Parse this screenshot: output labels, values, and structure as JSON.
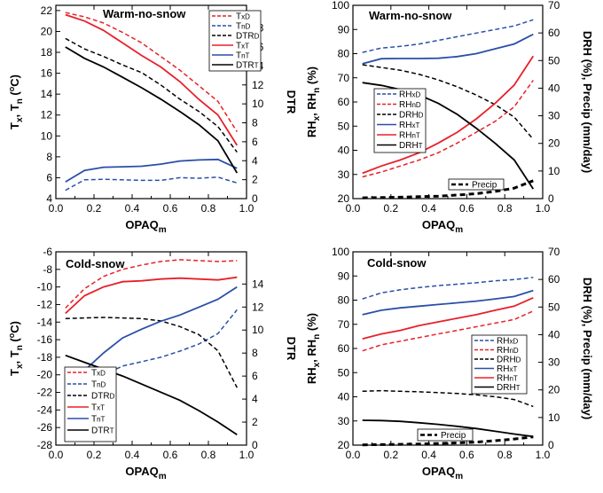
{
  "colors": {
    "red": "#e8202a",
    "blue": "#2a4fa8",
    "black": "#000000"
  },
  "chart_data": [
    {
      "type": "line",
      "panel": "top-left",
      "title": "Warm-no-snow",
      "xlabel": {
        "main": "OPAQ",
        "sub": "m"
      },
      "ylabel": {
        "main": "T",
        "sub1": "x",
        "mid": ", T",
        "sub2": "n",
        "tail": " (",
        "sup": "o",
        "end": "C)"
      },
      "y2label": "DTR",
      "xlim": [
        0,
        1
      ],
      "xticks": [
        0,
        0.2,
        0.4,
        0.6,
        0.8,
        1
      ],
      "xticklabels": [
        "0.0",
        "0.2",
        "0.4",
        "0.6",
        "0.8",
        "1.0"
      ],
      "ylim": [
        4,
        22.5
      ],
      "yticks": [
        4,
        6,
        8,
        10,
        12,
        14,
        16,
        18,
        20,
        22
      ],
      "yticklabels": [
        "4",
        "6",
        "8",
        "10",
        "12",
        "14",
        "16",
        "18",
        "20",
        "22"
      ],
      "y2lim": [
        0,
        20.4
      ],
      "y2ticks": [
        0,
        2,
        4,
        6,
        8,
        10,
        12,
        14,
        16,
        18
      ],
      "y2ticklabels": [
        "0",
        "2",
        "4",
        "6",
        "8",
        "10",
        "12",
        "14",
        "16",
        "18"
      ],
      "legend_position": "top-right",
      "x": [
        0.05,
        0.15,
        0.25,
        0.35,
        0.45,
        0.55,
        0.65,
        0.75,
        0.85,
        0.95
      ],
      "series": [
        {
          "name": "TxD",
          "base": "T",
          "sub": "xD",
          "color": "red",
          "dash": "dashed",
          "axis": "left",
          "values": [
            21.8,
            21.4,
            20.8,
            19.9,
            18.9,
            17.6,
            16.3,
            14.8,
            13.3,
            10.4
          ]
        },
        {
          "name": "TnD",
          "base": "T",
          "sub": "nD",
          "color": "blue",
          "dash": "dashed",
          "axis": "left",
          "values": [
            4.8,
            5.8,
            5.85,
            5.8,
            5.75,
            5.75,
            6.0,
            5.95,
            6.05,
            5.5
          ]
        },
        {
          "name": "DTRD",
          "base": "DTR",
          "sub": "D",
          "color": "black",
          "dash": "dashed",
          "axis": "right",
          "values": [
            16.9,
            15.8,
            15.0,
            14.1,
            13.3,
            12.0,
            10.5,
            9.2,
            7.6,
            4.9
          ]
        },
        {
          "name": "TxT",
          "base": "T",
          "sub": "xT",
          "color": "red",
          "dash": "solid",
          "axis": "left",
          "values": [
            21.6,
            21.0,
            20.1,
            18.9,
            17.7,
            16.6,
            15.2,
            13.5,
            12.0,
            9.1
          ]
        },
        {
          "name": "TnT",
          "base": "T",
          "sub": "nT",
          "color": "blue",
          "dash": "solid",
          "axis": "left",
          "values": [
            5.6,
            6.7,
            7.0,
            7.05,
            7.1,
            7.3,
            7.6,
            7.7,
            7.75,
            6.9
          ]
        },
        {
          "name": "DTRT",
          "base": "DTR",
          "sub": "T",
          "color": "black",
          "dash": "solid",
          "axis": "right",
          "values": [
            16.0,
            14.8,
            13.9,
            12.8,
            11.7,
            10.5,
            9.2,
            7.8,
            6.1,
            2.7
          ]
        }
      ]
    },
    {
      "type": "line",
      "panel": "top-right",
      "title": "Warm-no-snow",
      "xlabel": {
        "main": "OPAQ",
        "sub": "m"
      },
      "ylabel": {
        "main": "RH",
        "sub1": "x",
        "mid": ", RH",
        "sub2": "n",
        "tail": " (%)"
      },
      "y2label": "DRH (%), Precip (mm/day)",
      "xlim": [
        0,
        1
      ],
      "xticks": [
        0,
        0.2,
        0.4,
        0.6,
        0.8,
        1
      ],
      "xticklabels": [
        "0.0",
        "0.2",
        "0.4",
        "0.6",
        "0.8",
        "1.0"
      ],
      "ylim": [
        20,
        100
      ],
      "yticks": [
        20,
        30,
        40,
        50,
        60,
        70,
        80,
        90,
        100
      ],
      "yticklabels": [
        "20",
        "30",
        "40",
        "50",
        "60",
        "70",
        "80",
        "90",
        "100"
      ],
      "y2lim": [
        0,
        70
      ],
      "y2ticks": [
        0,
        10,
        20,
        30,
        40,
        50,
        60,
        70
      ],
      "y2ticklabels": [
        "0",
        "10",
        "20",
        "30",
        "40",
        "50",
        "60",
        "70"
      ],
      "legend_position": "center-right",
      "x": [
        0.05,
        0.15,
        0.25,
        0.35,
        0.45,
        0.55,
        0.65,
        0.75,
        0.85,
        0.95
      ],
      "series": [
        {
          "name": "RHxD",
          "base": "RH",
          "sub": "xD",
          "color": "blue",
          "dash": "dashed",
          "axis": "left",
          "values": [
            80.5,
            82.3,
            83.0,
            84.0,
            85.5,
            87.0,
            88.5,
            90.0,
            91.5,
            94.0
          ]
        },
        {
          "name": "RHnD",
          "base": "RH",
          "sub": "nD",
          "color": "red",
          "dash": "dashed",
          "axis": "left",
          "values": [
            29.0,
            31.0,
            33.5,
            36.0,
            39.0,
            43.0,
            47.5,
            52.0,
            58.0,
            69.0
          ]
        },
        {
          "name": "DRHD",
          "base": "DRH",
          "sub": "D",
          "color": "black",
          "dash": "dashed",
          "axis": "right",
          "values": [
            48.5,
            47.5,
            46.5,
            45.0,
            43.0,
            40.5,
            37.5,
            34.0,
            29.5,
            21.5
          ]
        },
        {
          "name": "RHxT",
          "base": "RH",
          "sub": "xT",
          "color": "blue",
          "dash": "solid",
          "axis": "left",
          "values": [
            75.8,
            77.9,
            78.0,
            78.0,
            78.1,
            78.8,
            80.0,
            82.0,
            84.0,
            88.0
          ]
        },
        {
          "name": "RHnT",
          "base": "RH",
          "sub": "nT",
          "color": "red",
          "dash": "solid",
          "axis": "left",
          "values": [
            30.5,
            33.5,
            36.0,
            39.0,
            43.0,
            47.5,
            53.0,
            59.5,
            67.0,
            79.0
          ]
        },
        {
          "name": "DRHT",
          "base": "DRH",
          "sub": "T",
          "color": "black",
          "dash": "solid",
          "axis": "right",
          "values": [
            42.0,
            41.0,
            39.5,
            37.5,
            34.5,
            30.5,
            25.5,
            20.0,
            14.0,
            3.5
          ]
        },
        {
          "name": "Precip",
          "base": "Precip",
          "sub": "",
          "color": "black",
          "dash": "thickdash",
          "axis": "right",
          "in_legend": false,
          "values": [
            0.3,
            0.4,
            0.5,
            0.7,
            0.9,
            1.3,
            1.8,
            2.6,
            3.8,
            6.5
          ]
        }
      ],
      "annotation": "Precip"
    },
    {
      "type": "line",
      "panel": "bottom-left",
      "title": "Cold-snow",
      "xlabel": {
        "main": "OPAQ",
        "sub": "m"
      },
      "ylabel": {
        "main": "T",
        "sub1": "x",
        "mid": ", T",
        "sub2": "n",
        "tail": " (",
        "sup": "o",
        "end": "C)"
      },
      "y2label": "DTR",
      "xlim": [
        0,
        1
      ],
      "xticks": [
        0,
        0.2,
        0.4,
        0.6,
        0.8,
        1
      ],
      "xticklabels": [
        "0.0",
        "0.2",
        "0.4",
        "0.6",
        "0.8",
        "1.0"
      ],
      "ylim": [
        -28,
        -6
      ],
      "yticks": [
        -28,
        -26,
        -24,
        -22,
        -20,
        -18,
        -16,
        -14,
        -12,
        -10,
        -8,
        -6
      ],
      "yticklabels": [
        "-28",
        "-26",
        "-24",
        "-22",
        "-20",
        "-18",
        "-16",
        "-14",
        "-12",
        "-10",
        "-8",
        "-6"
      ],
      "y2lim": [
        0,
        16.8
      ],
      "y2ticks": [
        0,
        2,
        4,
        6,
        8,
        10,
        12,
        14
      ],
      "y2ticklabels": [
        "0",
        "2",
        "4",
        "6",
        "8",
        "10",
        "12",
        "14"
      ],
      "legend_position": "bottom-left",
      "x": [
        0.05,
        0.15,
        0.25,
        0.35,
        0.45,
        0.55,
        0.65,
        0.75,
        0.85,
        0.95
      ],
      "series": [
        {
          "name": "TxD",
          "base": "T",
          "sub": "xD",
          "color": "red",
          "dash": "dashed",
          "axis": "left",
          "values": [
            -12.4,
            -10.2,
            -8.8,
            -8.0,
            -7.5,
            -7.1,
            -6.9,
            -7.0,
            -7.1,
            -7.0
          ]
        },
        {
          "name": "TnD",
          "base": "T",
          "sub": "nD",
          "color": "blue",
          "dash": "dashed",
          "axis": "left",
          "values": [
            -23.6,
            -21.4,
            -20.0,
            -19.0,
            -18.5,
            -18.0,
            -17.3,
            -16.5,
            -15.3,
            -12.6
          ]
        },
        {
          "name": "DTRD",
          "base": "DTR",
          "sub": "D",
          "color": "black",
          "dash": "dashed",
          "axis": "right",
          "values": [
            11.0,
            11.05,
            11.1,
            11.05,
            11.0,
            10.8,
            10.3,
            9.6,
            8.2,
            5.0
          ]
        },
        {
          "name": "TxT",
          "base": "T",
          "sub": "xT",
          "color": "red",
          "dash": "solid",
          "axis": "left",
          "values": [
            -13.0,
            -11.0,
            -10.0,
            -9.4,
            -9.3,
            -9.1,
            -9.0,
            -9.1,
            -9.2,
            -8.9
          ]
        },
        {
          "name": "TnT",
          "base": "T",
          "sub": "nT",
          "color": "blue",
          "dash": "solid",
          "axis": "left",
          "values": [
            -22.0,
            -19.5,
            -17.5,
            -15.8,
            -14.8,
            -13.9,
            -13.2,
            -12.3,
            -11.4,
            -10.0
          ]
        },
        {
          "name": "DTRT",
          "base": "DTR",
          "sub": "T",
          "color": "black",
          "dash": "solid",
          "axis": "right",
          "values": [
            7.8,
            7.2,
            6.6,
            6.0,
            5.3,
            4.6,
            3.9,
            3.0,
            2.0,
            0.9
          ]
        }
      ]
    },
    {
      "type": "line",
      "panel": "bottom-right",
      "title": "Cold-snow",
      "xlabel": {
        "main": "OPAQ",
        "sub": "m"
      },
      "ylabel": {
        "main": "RH",
        "sub1": "x",
        "mid": ", RH",
        "sub2": "n",
        "tail": " (%)"
      },
      "y2label": "DRH (%), Precip (mm/day)",
      "xlim": [
        0,
        1
      ],
      "xticks": [
        0,
        0.2,
        0.4,
        0.6,
        0.8,
        1
      ],
      "xticklabels": [
        "0.0",
        "0.2",
        "0.4",
        "0.6",
        "0.8",
        "1.0"
      ],
      "ylim": [
        20,
        100
      ],
      "yticks": [
        20,
        30,
        40,
        50,
        60,
        70,
        80,
        90,
        100
      ],
      "yticklabels": [
        "20",
        "30",
        "40",
        "50",
        "60",
        "70",
        "80",
        "90",
        "100"
      ],
      "y2lim": [
        0,
        70
      ],
      "y2ticks": [
        0,
        10,
        20,
        30,
        40,
        50,
        60,
        70
      ],
      "y2ticklabels": [
        "0",
        "10",
        "20",
        "30",
        "40",
        "50",
        "60",
        "70"
      ],
      "legend_position": "center-right",
      "x": [
        0.05,
        0.15,
        0.25,
        0.35,
        0.45,
        0.55,
        0.65,
        0.75,
        0.85,
        0.95
      ],
      "series": [
        {
          "name": "RHxD",
          "base": "RH",
          "sub": "xD",
          "color": "blue",
          "dash": "dashed",
          "axis": "left",
          "values": [
            80.5,
            83.0,
            84.3,
            85.2,
            86.0,
            86.6,
            87.2,
            88.0,
            88.5,
            89.4
          ]
        },
        {
          "name": "RHnD",
          "base": "RH",
          "sub": "nD",
          "color": "red",
          "dash": "dashed",
          "axis": "left",
          "values": [
            59.0,
            61.5,
            63.0,
            64.5,
            66.0,
            67.5,
            69.0,
            70.5,
            72.0,
            75.5
          ]
        },
        {
          "name": "DRHD",
          "base": "DRH",
          "sub": "D",
          "color": "black",
          "dash": "dashed",
          "axis": "right",
          "values": [
            19.5,
            19.7,
            19.5,
            19.3,
            19.0,
            18.7,
            18.2,
            17.5,
            16.5,
            14.0
          ]
        },
        {
          "name": "RHxT",
          "base": "RH",
          "sub": "xT",
          "color": "blue",
          "dash": "solid",
          "axis": "left",
          "values": [
            74.0,
            75.8,
            76.8,
            77.5,
            78.2,
            78.9,
            79.6,
            80.5,
            81.5,
            84.0
          ]
        },
        {
          "name": "RHnT",
          "base": "RH",
          "sub": "nT",
          "color": "red",
          "dash": "solid",
          "axis": "left",
          "values": [
            64.0,
            66.0,
            67.5,
            69.5,
            71.0,
            72.5,
            74.0,
            75.8,
            77.5,
            81.0
          ]
        },
        {
          "name": "DRHT",
          "base": "DRH",
          "sub": "T",
          "color": "black",
          "dash": "solid",
          "axis": "right",
          "values": [
            9.0,
            8.9,
            8.6,
            8.1,
            7.5,
            6.8,
            6.0,
            5.0,
            4.0,
            3.1
          ]
        },
        {
          "name": "Precip",
          "base": "Precip",
          "sub": "",
          "color": "black",
          "dash": "thickdash",
          "axis": "right",
          "in_legend": false,
          "values": [
            0.1,
            0.2,
            0.3,
            0.4,
            0.6,
            0.8,
            1.1,
            1.6,
            2.2,
            3.0
          ]
        }
      ],
      "annotation": "Precip"
    }
  ]
}
